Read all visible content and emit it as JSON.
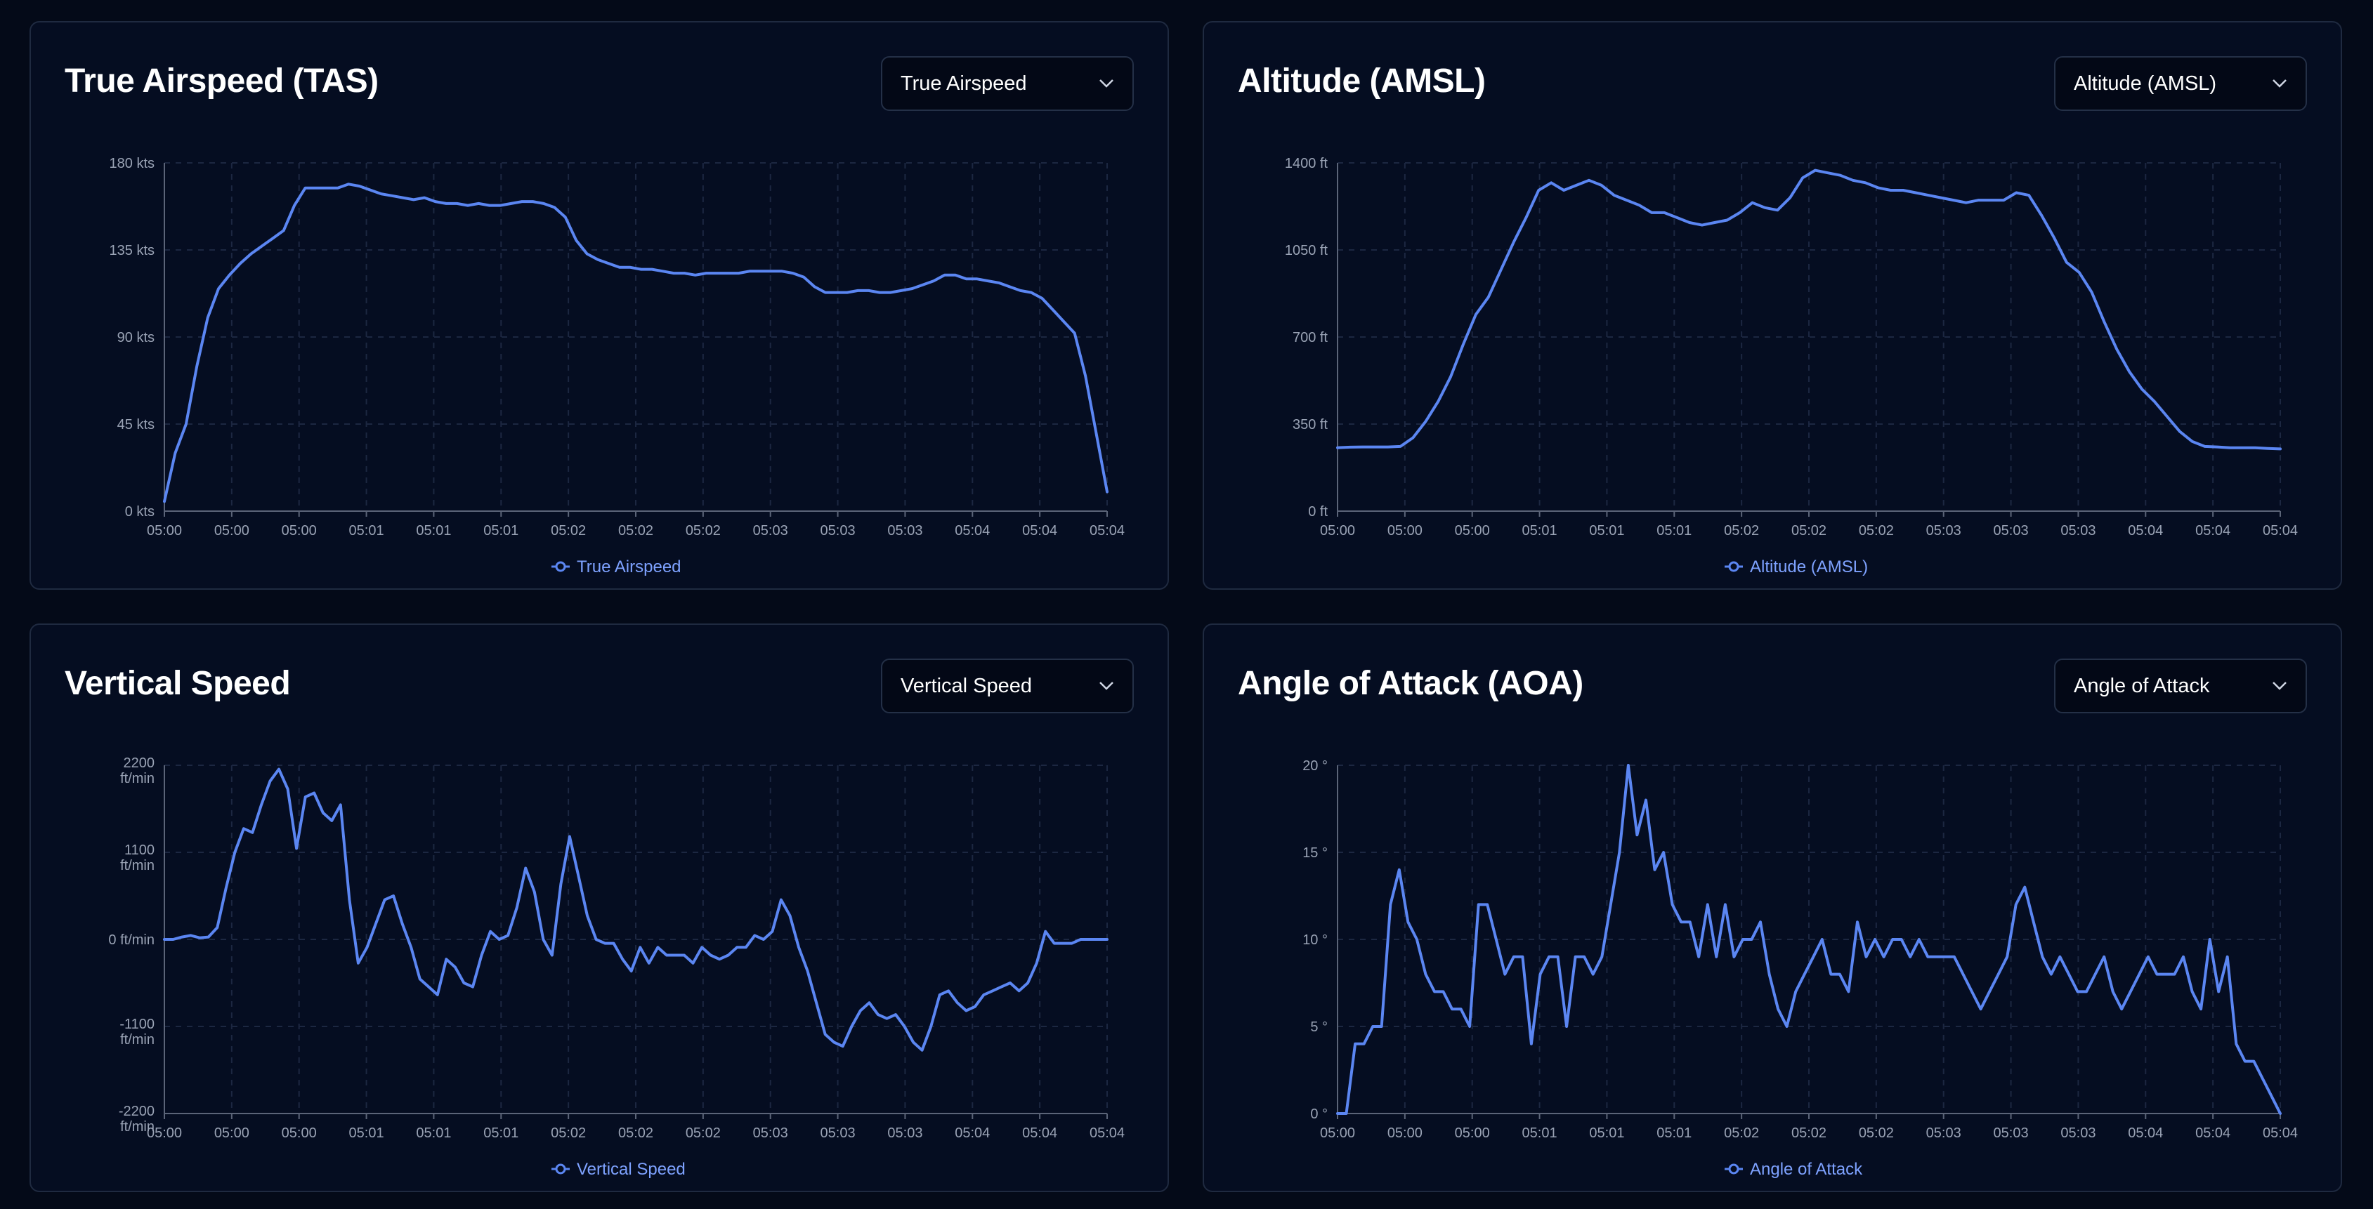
{
  "colors": {
    "background": "#040a18",
    "panel": "#050d21",
    "line": "#5b86f2",
    "grid": "#1c2741"
  },
  "panels": [
    {
      "title": "True Airspeed (TAS)",
      "selector": {
        "value": "True Airspeed",
        "icon": "chevron-down-icon"
      },
      "chart_data": {
        "type": "line",
        "series": [
          {
            "name": "True Airspeed",
            "values": [
              5,
              30,
              45,
              75,
              100,
              115,
              122,
              128,
              133,
              137,
              141,
              145,
              158,
              167,
              167,
              167,
              167,
              169,
              168,
              166,
              164,
              163,
              162,
              161,
              162,
              160,
              159,
              159,
              158,
              159,
              158,
              158,
              159,
              160,
              160,
              159,
              157,
              152,
              140,
              133,
              130,
              128,
              126,
              126,
              125,
              125,
              124,
              123,
              123,
              122,
              123,
              123,
              123,
              123,
              124,
              124,
              124,
              124,
              123,
              121,
              116,
              113,
              113,
              113,
              114,
              114,
              113,
              113,
              114,
              115,
              117,
              119,
              122,
              122,
              120,
              120,
              119,
              118,
              116,
              114,
              113,
              110,
              104,
              98,
              92,
              70,
              40,
              10
            ]
          }
        ],
        "x_ticks": [
          "05:00",
          "05:00",
          "05:00",
          "05:01",
          "05:01",
          "05:01",
          "05:02",
          "05:02",
          "05:02",
          "05:03",
          "05:03",
          "05:03",
          "05:04",
          "05:04",
          "05:04"
        ],
        "y_ticks": [
          "0 kts",
          "45 kts",
          "90 kts",
          "135 kts",
          "180 kts"
        ],
        "ylim": [
          0,
          180
        ],
        "grid": true,
        "legend": "bottom"
      }
    },
    {
      "title": "Altitude (AMSL)",
      "selector": {
        "value": "Altitude (AMSL)",
        "icon": "chevron-down-icon"
      },
      "chart_data": {
        "type": "line",
        "series": [
          {
            "name": "Altitude (AMSL)",
            "values": [
              255,
              257,
              258,
              258,
              258,
              260,
              295,
              360,
              440,
              540,
              670,
              790,
              860,
              970,
              1080,
              1180,
              1290,
              1320,
              1290,
              1310,
              1330,
              1310,
              1270,
              1250,
              1230,
              1200,
              1200,
              1180,
              1160,
              1150,
              1160,
              1170,
              1200,
              1240,
              1220,
              1210,
              1260,
              1340,
              1370,
              1360,
              1350,
              1330,
              1320,
              1300,
              1290,
              1290,
              1280,
              1270,
              1260,
              1250,
              1240,
              1250,
              1250,
              1250,
              1280,
              1270,
              1190,
              1100,
              1000,
              960,
              880,
              760,
              650,
              560,
              490,
              440,
              380,
              320,
              280,
              260,
              258,
              255,
              255,
              255,
              252,
              250
            ]
          }
        ],
        "x_ticks": [
          "05:00",
          "05:00",
          "05:00",
          "05:01",
          "05:01",
          "05:01",
          "05:02",
          "05:02",
          "05:02",
          "05:03",
          "05:03",
          "05:03",
          "05:04",
          "05:04",
          "05:04"
        ],
        "y_ticks": [
          "0 ft",
          "350 ft",
          "700 ft",
          "1050 ft",
          "1400 ft"
        ],
        "ylim": [
          0,
          1400
        ],
        "grid": true,
        "legend": "bottom"
      }
    },
    {
      "title": "Vertical Speed",
      "selector": {
        "value": "Vertical Speed",
        "icon": "chevron-down-icon"
      },
      "chart_data": {
        "type": "line",
        "series": [
          {
            "name": "Vertical Speed",
            "values": [
              0,
              0,
              30,
              50,
              20,
              30,
              150,
              650,
              1100,
              1400,
              1350,
              1700,
              2000,
              2150,
              1900,
              1150,
              1800,
              1850,
              1600,
              1500,
              1700,
              500,
              -300,
              -100,
              200,
              500,
              550,
              200,
              -100,
              -500,
              -600,
              -700,
              -250,
              -350,
              -550,
              -600,
              -200,
              100,
              0,
              50,
              400,
              900,
              600,
              0,
              -200,
              700,
              1300,
              800,
              300,
              0,
              -50,
              -50,
              -250,
              -400,
              -100,
              -300,
              -100,
              -200,
              -200,
              -200,
              -300,
              -100,
              -200,
              -250,
              -200,
              -100,
              -100,
              50,
              0,
              100,
              500,
              300,
              -100,
              -400,
              -800,
              -1200,
              -1300,
              -1350,
              -1100,
              -900,
              -800,
              -950,
              -1000,
              -950,
              -1100,
              -1300,
              -1400,
              -1100,
              -700,
              -650,
              -800,
              -900,
              -850,
              -700,
              -650,
              -600,
              -550,
              -650,
              -550,
              -300,
              100,
              -50,
              -50,
              -50,
              0,
              0,
              0,
              0
            ]
          }
        ],
        "x_ticks": [
          "05:00",
          "05:00",
          "05:00",
          "05:01",
          "05:01",
          "05:01",
          "05:02",
          "05:02",
          "05:02",
          "05:03",
          "05:03",
          "05:03",
          "05:04",
          "05:04",
          "05:04"
        ],
        "y_ticks": [
          [
            "-2200",
            "ft/min"
          ],
          [
            "-1100",
            "ft/min"
          ],
          [
            "0 ft/min"
          ],
          [
            "1100",
            "ft/min"
          ],
          [
            "2200",
            "ft/min"
          ]
        ],
        "ylim": [
          -2200,
          2200
        ],
        "grid": true,
        "legend": "bottom"
      }
    },
    {
      "title": "Angle of Attack (AOA)",
      "selector": {
        "value": "Angle of Attack",
        "icon": "chevron-down-icon"
      },
      "chart_data": {
        "type": "line",
        "series": [
          {
            "name": "Angle of Attack",
            "values": [
              0,
              0,
              4,
              4,
              5,
              5,
              12,
              14,
              11,
              10,
              8,
              7,
              7,
              6,
              6,
              5,
              12,
              12,
              10,
              8,
              9,
              9,
              4,
              8,
              9,
              9,
              5,
              9,
              9,
              8,
              9,
              12,
              15,
              20,
              16,
              18,
              14,
              15,
              12,
              11,
              11,
              9,
              12,
              9,
              12,
              9,
              10,
              10,
              11,
              8,
              6,
              5,
              7,
              8,
              9,
              10,
              8,
              8,
              7,
              11,
              9,
              10,
              9,
              10,
              10,
              9,
              10,
              9,
              9,
              9,
              9,
              8,
              7,
              6,
              7,
              8,
              9,
              12,
              13,
              11,
              9,
              8,
              9,
              8,
              7,
              7,
              8,
              9,
              7,
              6,
              7,
              8,
              9,
              8,
              8,
              8,
              9,
              7,
              6,
              10,
              7,
              9,
              4,
              3,
              3,
              2,
              1,
              0
            ]
          }
        ],
        "x_ticks": [
          "05:00",
          "05:00",
          "05:00",
          "05:01",
          "05:01",
          "05:01",
          "05:02",
          "05:02",
          "05:02",
          "05:03",
          "05:03",
          "05:03",
          "05:04",
          "05:04",
          "05:04"
        ],
        "y_ticks": [
          "0 °",
          "5 °",
          "10 °",
          "15 °",
          "20 °"
        ],
        "ylim": [
          0,
          20
        ],
        "grid": true,
        "legend": "bottom"
      }
    }
  ]
}
